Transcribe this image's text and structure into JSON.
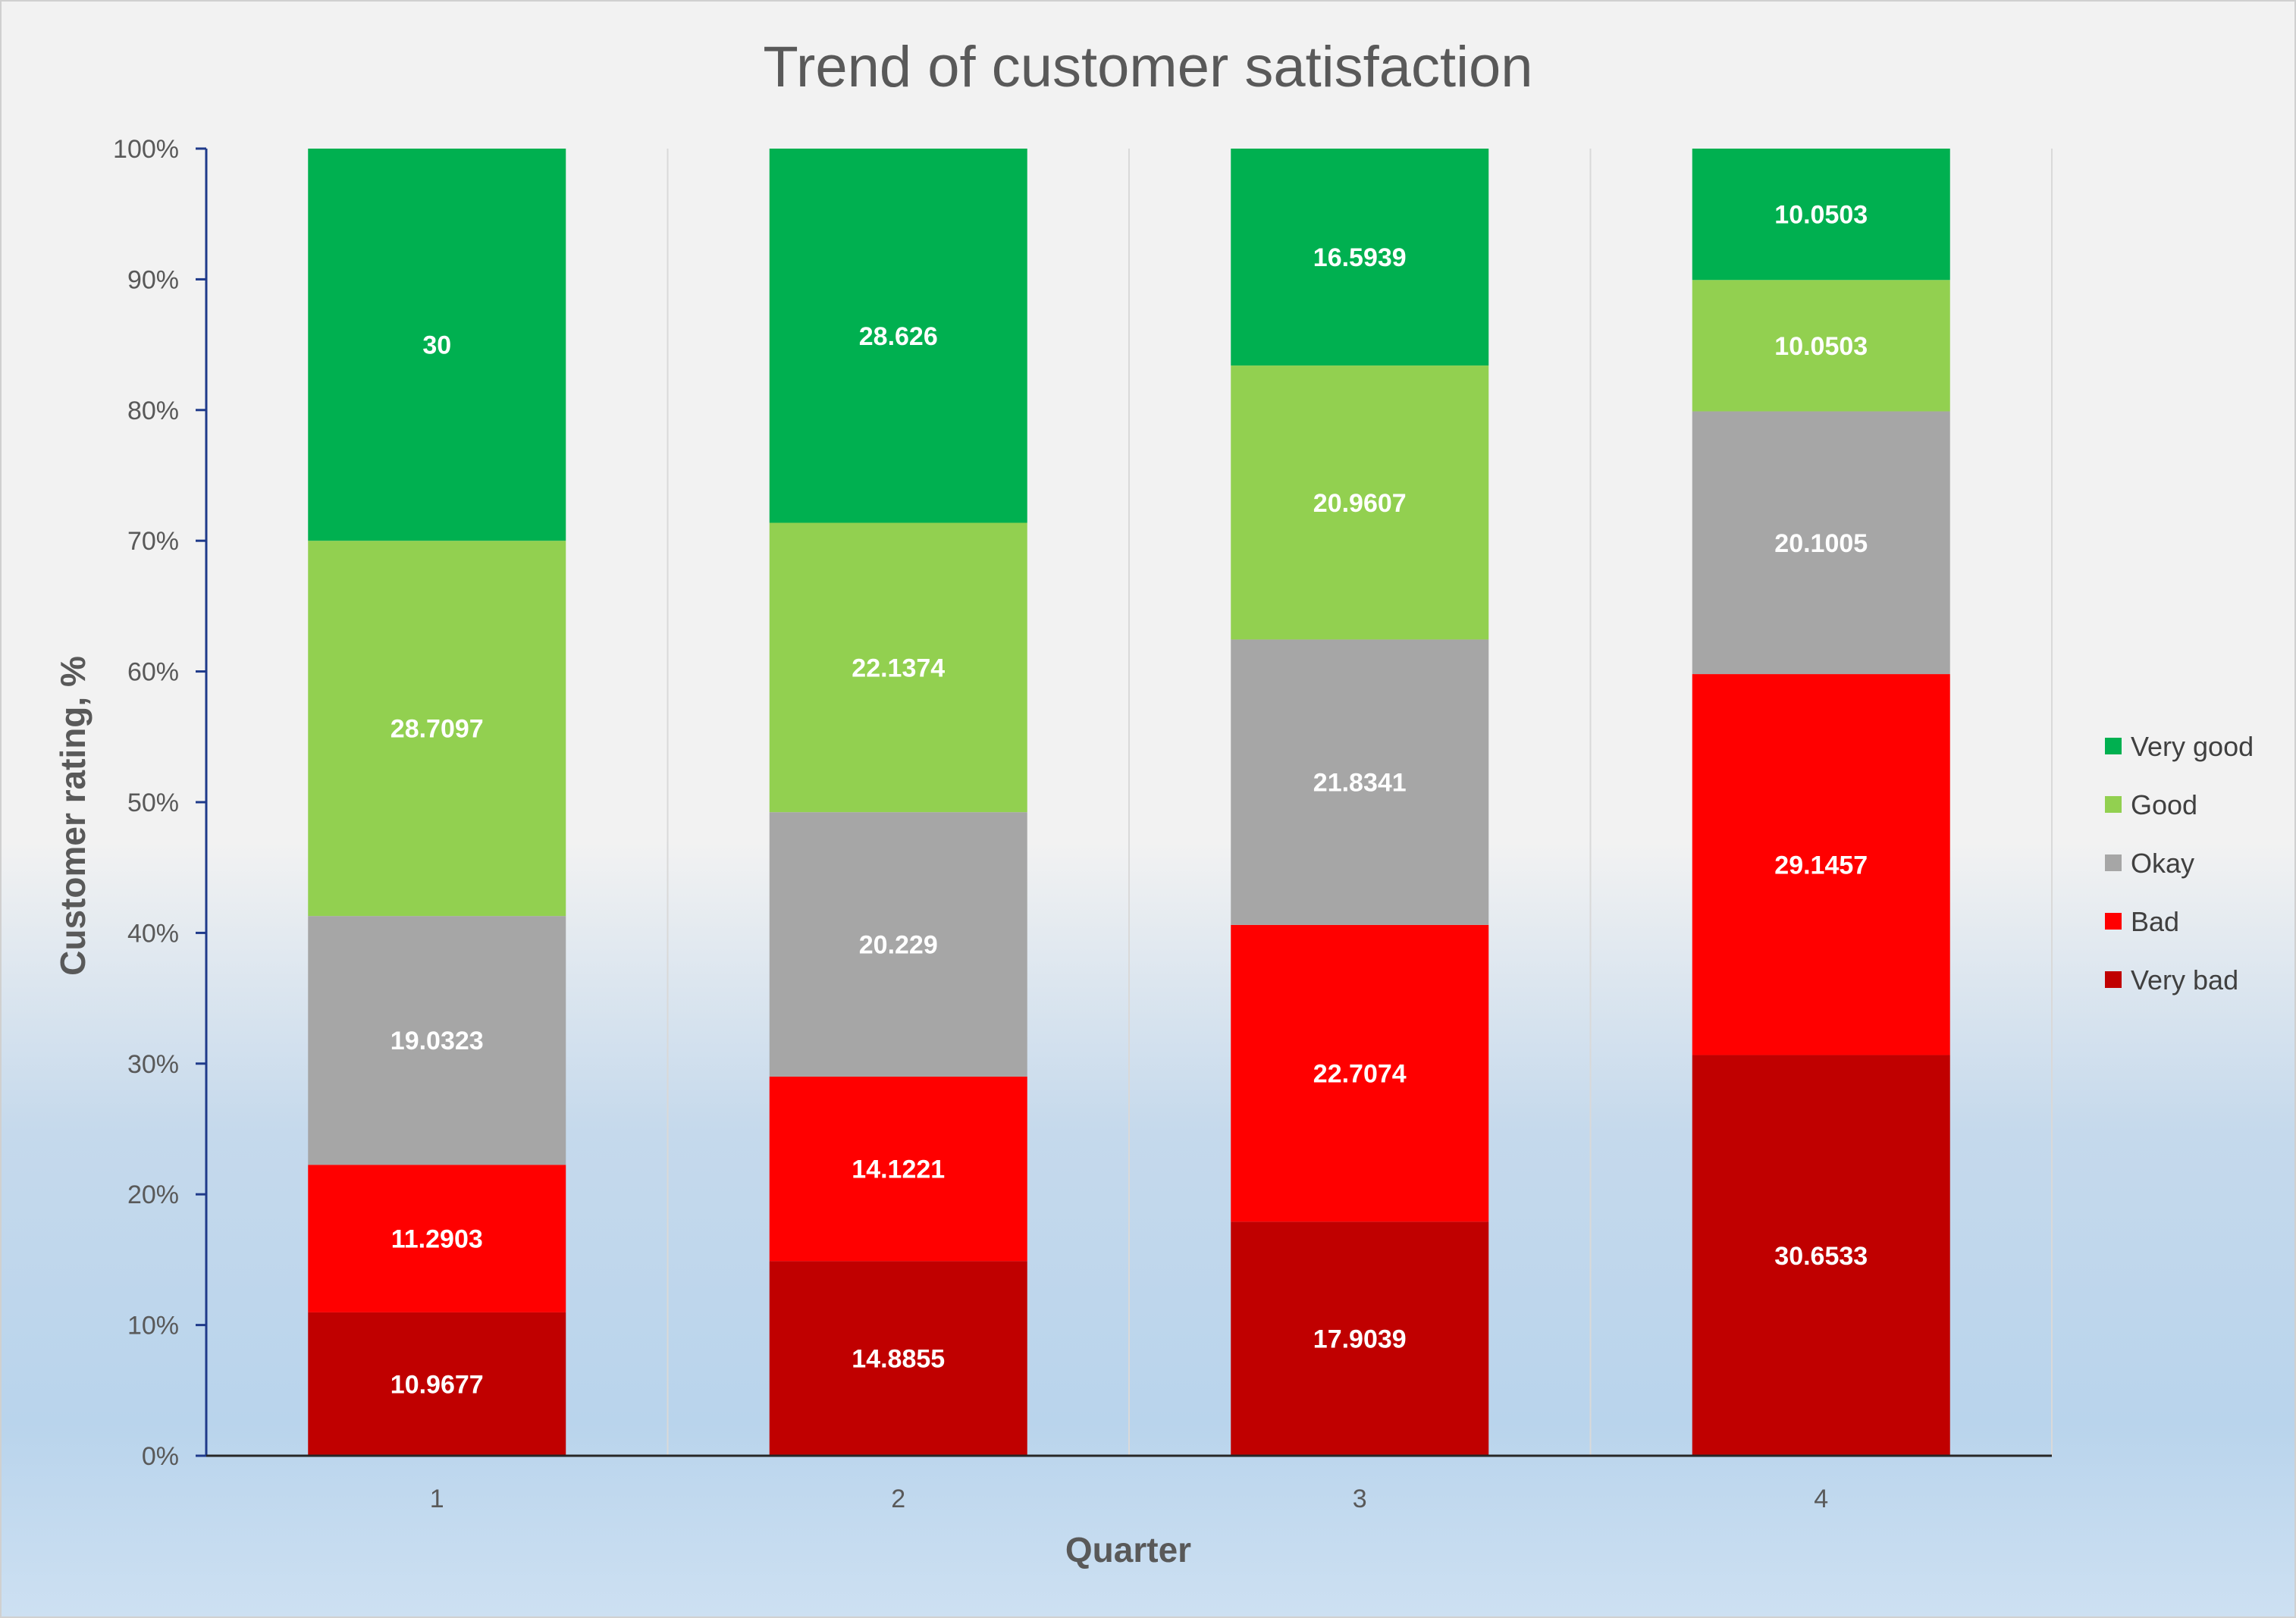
{
  "chart_data": {
    "type": "bar",
    "stacked": true,
    "normalized": true,
    "title": "Trend of customer satisfaction",
    "xlabel": "Quarter",
    "ylabel": "Customer rating, %",
    "categories": [
      "1",
      "2",
      "3",
      "4"
    ],
    "y_ticks": [
      "0%",
      "10%",
      "20%",
      "30%",
      "40%",
      "50%",
      "60%",
      "70%",
      "80%",
      "90%",
      "100%"
    ],
    "ylim": [
      0,
      100
    ],
    "grid": "vertical",
    "legend_position": "right",
    "series": [
      {
        "name": "Very bad",
        "color": "#c00000",
        "values": [
          10.9677,
          14.8855,
          17.9039,
          30.6533
        ],
        "labels": [
          "10.9677",
          "14.8855",
          "17.9039",
          "30.6533"
        ]
      },
      {
        "name": "Bad",
        "color": "#ff0000",
        "values": [
          11.2903,
          14.1221,
          22.7074,
          29.1457
        ],
        "labels": [
          "11.2903",
          "14.1221",
          "22.7074",
          "29.1457"
        ]
      },
      {
        "name": "Okay",
        "color": "#a6a6a6",
        "values": [
          19.0323,
          20.229,
          21.8341,
          20.1005
        ],
        "labels": [
          "19.0323",
          "20.229",
          "21.8341",
          "20.1005"
        ]
      },
      {
        "name": "Good",
        "color": "#92d050",
        "values": [
          28.7097,
          22.1374,
          20.9607,
          10.0503
        ],
        "labels": [
          "28.7097",
          "22.1374",
          "20.9607",
          "10.0503"
        ]
      },
      {
        "name": "Very good",
        "color": "#00b050",
        "values": [
          30,
          28.626,
          16.5939,
          10.0503
        ],
        "labels": [
          "30",
          "28.626",
          "16.5939",
          "10.0503"
        ]
      }
    ],
    "legend_order": [
      "Very good",
      "Good",
      "Okay",
      "Bad",
      "Very bad"
    ]
  }
}
